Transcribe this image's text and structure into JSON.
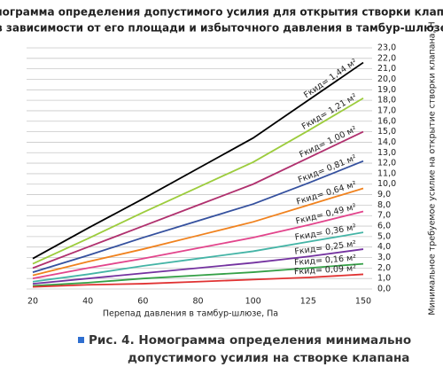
{
  "chart_data": {
    "type": "line",
    "title_lines": [
      "Номограмма определения допустимого усилия для открытия створки клапана",
      "в зависимости от его площади и избыточного давления в тамбур-шлюзе"
    ],
    "x_label": "Перепад давления в тамбур-шлюзе, Па",
    "y_label": "Минимальное требуемое усилие на открытие створки клапана, Н",
    "caption_lines": [
      "Рис. 4. Номограмма определения минимально",
      "допустимого усилия на створке клапана"
    ],
    "categories": [
      "20",
      "40",
      "60",
      "80",
      "100",
      "125",
      "150"
    ],
    "ylim": [
      0,
      23
    ],
    "yticks": [
      {
        "value": 0,
        "label": "0,0"
      },
      {
        "value": 1,
        "label": "1,0"
      },
      {
        "value": 2,
        "label": "2,0"
      },
      {
        "value": 3,
        "label": "3,0"
      },
      {
        "value": 4,
        "label": "4,0"
      },
      {
        "value": 5,
        "label": "5,0"
      },
      {
        "value": 6,
        "label": "6,0"
      },
      {
        "value": 7,
        "label": "7,0"
      },
      {
        "value": 8,
        "label": "8,0"
      },
      {
        "value": 9,
        "label": "9,0"
      },
      {
        "value": 10,
        "label": "10,0"
      },
      {
        "value": 11,
        "label": "11,0"
      },
      {
        "value": 12,
        "label": "12,0"
      },
      {
        "value": 13,
        "label": "13,0"
      },
      {
        "value": 14,
        "label": "14,0"
      },
      {
        "value": 15,
        "label": "15,0"
      },
      {
        "value": 16,
        "label": "16,0"
      },
      {
        "value": 17,
        "label": "17,0"
      },
      {
        "value": 18,
        "label": "18,0"
      },
      {
        "value": 19,
        "label": "19,0"
      },
      {
        "value": 20,
        "label": "20,0"
      },
      {
        "value": 21,
        "label": "21,0"
      },
      {
        "value": 22,
        "label": "22,0"
      },
      {
        "value": 23,
        "label": "23,0"
      }
    ],
    "grid": true,
    "series": [
      {
        "name": "Fкид= 1,44 м²",
        "color": "#000000",
        "values": [
          2.9,
          5.8,
          8.6,
          11.5,
          14.4,
          18.0,
          21.6
        ]
      },
      {
        "name": "Fкид= 1,21 м²",
        "color": "#9ccc3c",
        "values": [
          2.4,
          4.8,
          7.3,
          9.7,
          12.1,
          15.1,
          18.2
        ]
      },
      {
        "name": "Fкид= 1,00 м²",
        "color": "#b0306e",
        "values": [
          2.0,
          4.0,
          6.0,
          8.0,
          10.0,
          12.5,
          15.0
        ]
      },
      {
        "name": "Fкид= 0,81 м²",
        "color": "#34509e",
        "values": [
          1.6,
          3.2,
          4.9,
          6.5,
          8.1,
          10.1,
          12.2
        ]
      },
      {
        "name": "Fкид= 0,64 м²",
        "color": "#f0821e",
        "values": [
          1.3,
          2.6,
          3.8,
          5.1,
          6.4,
          8.0,
          9.6
        ]
      },
      {
        "name": "Fкид= 0,49 м²",
        "color": "#e2458c",
        "values": [
          1.0,
          2.0,
          2.9,
          3.9,
          4.9,
          6.1,
          7.4
        ]
      },
      {
        "name": "Fкид= 0,36 м²",
        "color": "#44b4a6",
        "values": [
          0.7,
          1.4,
          2.2,
          2.9,
          3.6,
          4.5,
          5.4
        ]
      },
      {
        "name": "Fкид= 0,25 м²",
        "color": "#7432a0",
        "values": [
          0.5,
          1.0,
          1.5,
          2.0,
          2.5,
          3.1,
          3.8
        ]
      },
      {
        "name": "Fкид= 0,16 м²",
        "color": "#34a046",
        "values": [
          0.3,
          0.6,
          1.0,
          1.3,
          1.6,
          2.0,
          2.4
        ]
      },
      {
        "name": "Fкид= 0,09 м²",
        "color": "#e03232",
        "values": [
          0.2,
          0.4,
          0.5,
          0.7,
          0.9,
          1.1,
          1.4
        ]
      }
    ]
  }
}
